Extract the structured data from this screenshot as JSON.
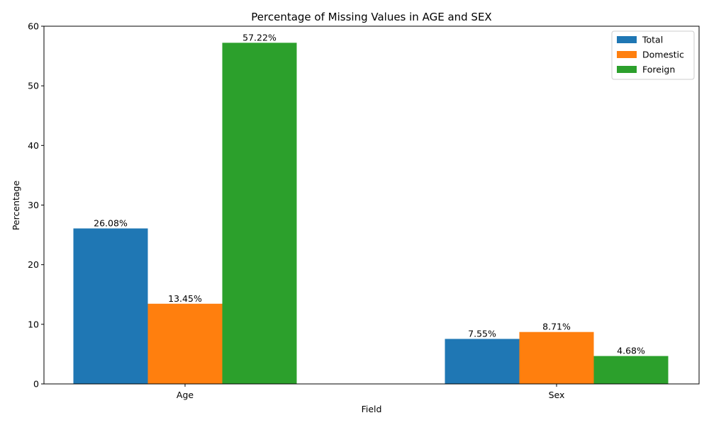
{
  "chart_data": {
    "type": "bar",
    "title": "Percentage of Missing Values in AGE and SEX",
    "xlabel": "Field",
    "ylabel": "Percentage",
    "categories": [
      "Age",
      "Sex"
    ],
    "series": [
      {
        "name": "Total",
        "values": [
          26.08,
          7.55
        ],
        "labels": [
          "26.08%",
          "7.55%"
        ],
        "color": "#1f77b4"
      },
      {
        "name": "Domestic",
        "values": [
          13.45,
          8.71
        ],
        "labels": [
          "13.45%",
          "8.71%"
        ],
        "color": "#ff7f0e"
      },
      {
        "name": "Foreign",
        "values": [
          57.22,
          4.68
        ],
        "labels": [
          "57.22%",
          "4.68%"
        ],
        "color": "#2ca02c"
      }
    ],
    "ylim": [
      0,
      60
    ],
    "yticks": [
      0,
      10,
      20,
      30,
      40,
      50,
      60
    ],
    "grid": false,
    "legend_position": "top-right"
  }
}
